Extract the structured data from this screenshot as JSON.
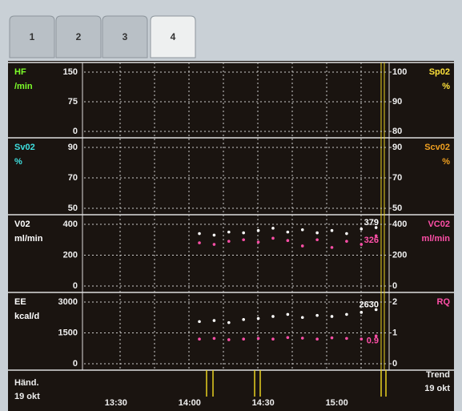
{
  "tabs": [
    "1",
    "2",
    "3",
    "4"
  ],
  "xlim": [
    "13:17",
    "15:21"
  ],
  "time_labels": [
    "13:30",
    "14:00",
    "14:30",
    "15:00"
  ],
  "footer_left": [
    "Händ.",
    "19 okt"
  ],
  "footer_right": [
    "Trend",
    "19 okt"
  ],
  "panels": [
    {
      "left_label": "HF",
      "left_unit": "/min",
      "left_color": "#7dff2a",
      "left_ticks": [
        0,
        75,
        150
      ],
      "right_label": "Sp02",
      "right_unit": "%",
      "right_color": "#ffe23a",
      "right_ticks": [
        80,
        90,
        100
      ]
    },
    {
      "left_label": "Sv02",
      "left_unit": "%",
      "left_color": "#3ee0e0",
      "left_ticks": [
        50,
        70,
        90
      ],
      "right_label": "Scv02",
      "right_unit": "%",
      "right_color": "#f0a020",
      "right_ticks": [
        50,
        70,
        90
      ]
    },
    {
      "left_label": "V02",
      "left_unit": "ml/min",
      "left_color": "#ffffff",
      "left_ticks": [
        0,
        200,
        400
      ],
      "right_label": "VC02",
      "right_unit": "ml/min",
      "right_color": "#ff4fa8",
      "right_ticks": [
        0,
        200,
        400
      ],
      "x": [
        "14:04",
        "14:10",
        "14:16",
        "14:22",
        "14:28",
        "14:34",
        "14:40",
        "14:46",
        "14:52",
        "14:58",
        "15:04",
        "15:10",
        "15:16"
      ],
      "left_values": [
        340,
        330,
        350,
        345,
        360,
        375,
        350,
        365,
        345,
        360,
        340,
        370,
        379
      ],
      "right_values": [
        280,
        270,
        290,
        300,
        285,
        310,
        295,
        260,
        300,
        250,
        290,
        270,
        326
      ]
    },
    {
      "left_label": "EE",
      "left_unit": "kcal/d",
      "left_color": "#ffffff",
      "left_ticks": [
        0,
        1500,
        3000
      ],
      "right_label": "RQ",
      "right_color": "#ff4fa8",
      "right_ticks": [
        0,
        1,
        2
      ],
      "x": [
        "14:04",
        "14:10",
        "14:16",
        "14:22",
        "14:28",
        "14:34",
        "14:40",
        "14:46",
        "14:52",
        "14:58",
        "15:04",
        "15:10",
        "15:16"
      ],
      "left_values": [
        2050,
        2100,
        2000,
        2150,
        2200,
        2300,
        2400,
        2250,
        2350,
        2300,
        2400,
        2500,
        2630
      ],
      "right_values": [
        0.8,
        0.82,
        0.78,
        0.8,
        0.82,
        0.8,
        0.85,
        0.83,
        0.8,
        0.84,
        0.82,
        0.8,
        0.9
      ]
    }
  ]
}
